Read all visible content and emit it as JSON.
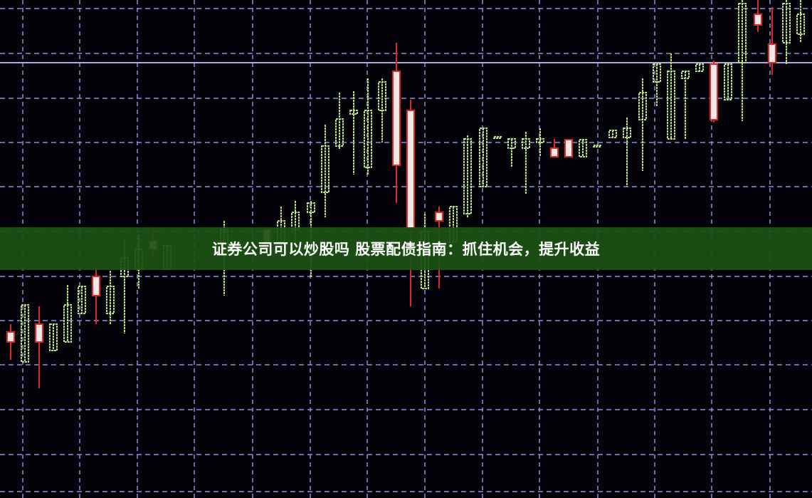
{
  "banner": {
    "title": "证券公司可以炒股吗 股票配债指南：抓住机会，提升收益"
  },
  "colors": {
    "background": "#020208",
    "grid": "#8f8fe0",
    "up_candle": "#b8e07a",
    "down_candle": "#e02828",
    "banner": "#1c5216"
  }
}
